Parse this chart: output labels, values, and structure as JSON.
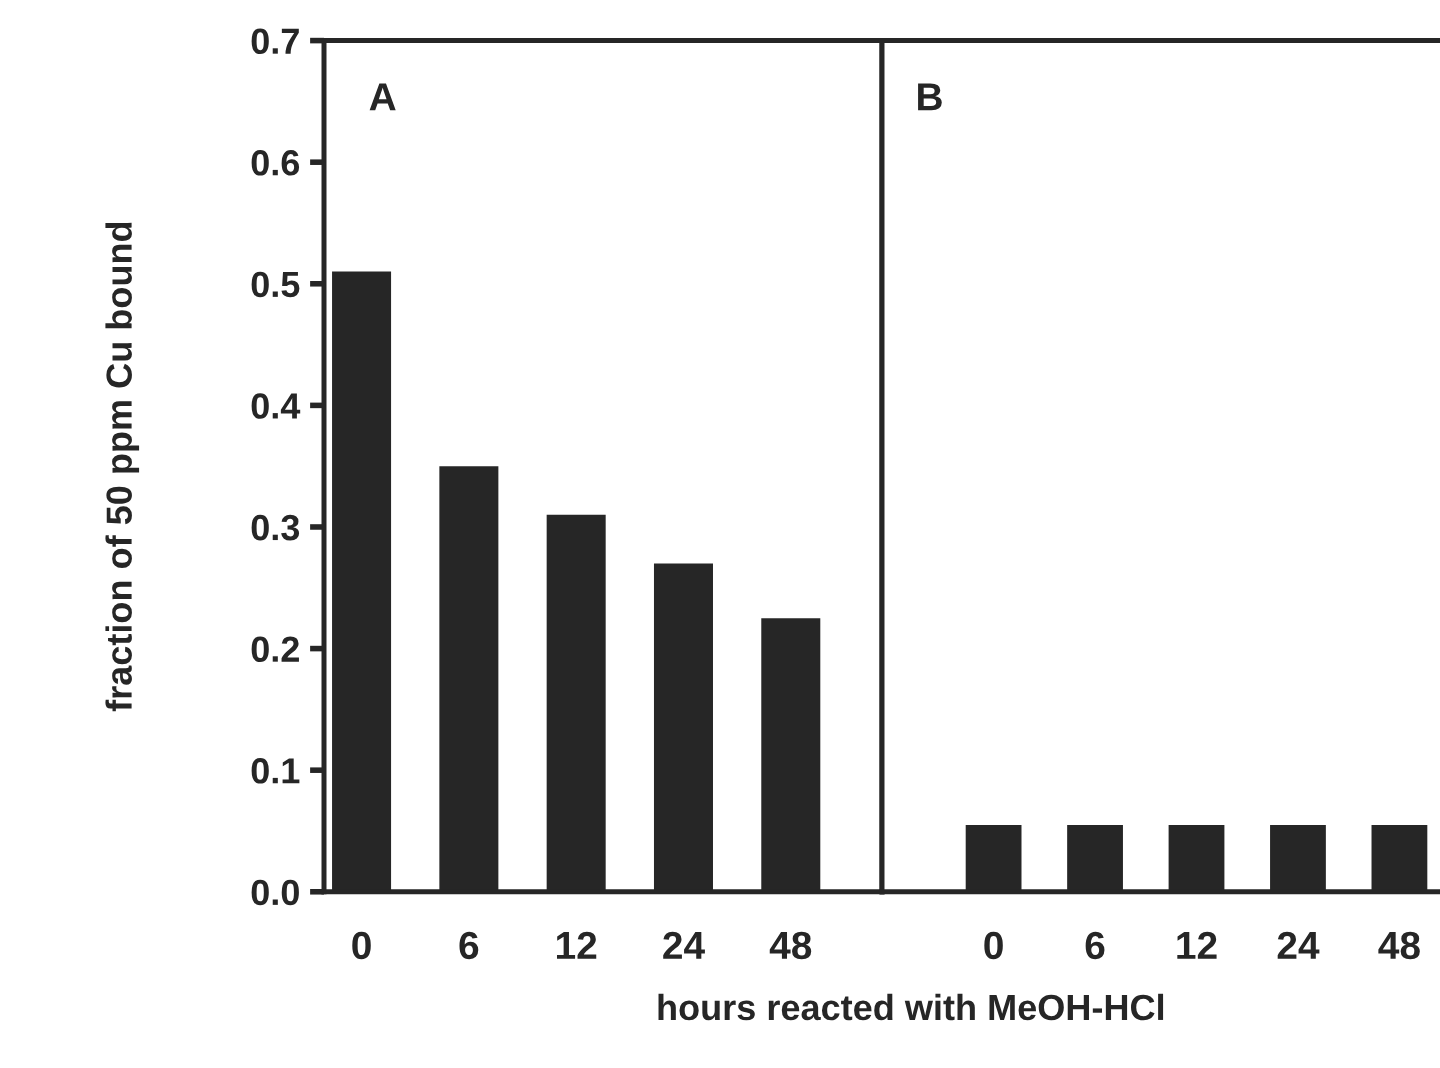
{
  "chart_data": [
    {
      "type": "bar",
      "ylabel": "fraction of 50 ppm Cu bound",
      "xlabel": "hours reacted with MeOH-HCl",
      "annotations": [
        "A"
      ],
      "categories": [
        "0",
        "6",
        "12",
        "24",
        "48"
      ],
      "values": [
        0.51,
        0.35,
        0.31,
        0.27,
        0.225
      ],
      "color": "#262626",
      "ylim": [
        0,
        0.7
      ],
      "yticks": [
        "0.0",
        0.1,
        0.2,
        0.3,
        0.4,
        0.5,
        0.6,
        0.7
      ],
      "grid": false
    },
    {
      "type": "bar",
      "annotations": [
        "B"
      ],
      "categories": [
        "0",
        "6",
        "12",
        "24",
        "48"
      ],
      "values": [
        0.055,
        0.055,
        0.055,
        0.055,
        0.055
      ],
      "color": "#262626",
      "ylim": [
        0,
        0.7
      ],
      "tick_labels": "x",
      "grid": false
    }
  ]
}
